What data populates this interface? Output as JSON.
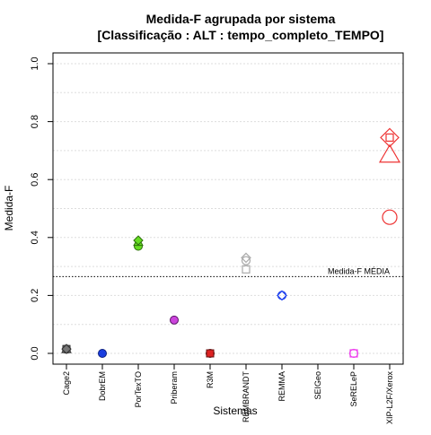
{
  "chart_data": {
    "type": "scatter",
    "title": "Medida-F agrupada por sistema",
    "subtitle": "[Classificação : ALT : tempo_completo_TEMPO]",
    "xlabel": "Sistemas",
    "ylabel": "Medida-F",
    "ylim": [
      0,
      1
    ],
    "yticks": [
      "0.0",
      "0.2",
      "0.4",
      "0.6",
      "0.8",
      "1.0"
    ],
    "grid": true,
    "categories": [
      "Cage2",
      "DobrEM",
      "PorTexTO",
      "Priberam",
      "R3M",
      "REMBRANDT",
      "REMMA",
      "SEIGeo",
      "SeRELeP",
      "XIP-L2F/Xerox"
    ],
    "reference_line": {
      "label": "Medida-F MÉDIA",
      "value": 0.265
    },
    "points": [
      {
        "category": "Cage2",
        "marker": "circle",
        "value": 0.015,
        "fill": "#777777",
        "stroke": "#333333"
      },
      {
        "category": "Cage2",
        "marker": "square",
        "value": 0.015,
        "fill": "#777777",
        "stroke": "#333333"
      },
      {
        "category": "Cage2",
        "marker": "triangle",
        "value": 0.015,
        "fill": "#777777",
        "stroke": "#333333"
      },
      {
        "category": "Cage2",
        "marker": "diamond",
        "value": 0.015,
        "fill": "#777777",
        "stroke": "#333333"
      },
      {
        "category": "DobrEM",
        "marker": "circle",
        "value": 0.0,
        "fill": "#1a3ee0",
        "stroke": "#0b1f80"
      },
      {
        "category": "PorTexTO",
        "marker": "circle",
        "value": 0.37,
        "fill": "#66dd22",
        "stroke": "#2d6e0c"
      },
      {
        "category": "PorTexTO",
        "marker": "triangle",
        "value": 0.385,
        "fill": "#66dd22",
        "stroke": "#2d6e0c"
      },
      {
        "category": "PorTexTO",
        "marker": "diamond",
        "value": 0.39,
        "fill": "#66dd22",
        "stroke": "#2d6e0c"
      },
      {
        "category": "Priberam",
        "marker": "circle",
        "value": 0.115,
        "fill": "#cc44dd",
        "stroke": "#5a1466"
      },
      {
        "category": "R3M",
        "marker": "circle",
        "value": 0.0,
        "fill": "#dd2222",
        "stroke": "#661111"
      },
      {
        "category": "R3M",
        "marker": "square",
        "value": 0.0,
        "fill": "#dd2222",
        "stroke": "#661111"
      },
      {
        "category": "REMBRANDT",
        "marker": "open-square",
        "value": 0.29,
        "fill": "none",
        "stroke": "#aaaaaa"
      },
      {
        "category": "REMBRANDT",
        "marker": "open-circle",
        "value": 0.32,
        "fill": "none",
        "stroke": "#aaaaaa"
      },
      {
        "category": "REMBRANDT",
        "marker": "open-diamond",
        "value": 0.33,
        "fill": "none",
        "stroke": "#aaaaaa"
      },
      {
        "category": "REMMA",
        "marker": "open-diamond",
        "value": 0.2,
        "fill": "none",
        "stroke": "#2244ee"
      },
      {
        "category": "REMMA",
        "marker": "open-circle",
        "value": 0.2,
        "fill": "none",
        "stroke": "#2244ee"
      },
      {
        "category": "SeRELeP",
        "marker": "open-square",
        "value": 0.0,
        "fill": "none",
        "stroke": "#ee44ee"
      },
      {
        "category": "SeRELeP",
        "marker": "open-circle",
        "value": 0.0,
        "fill": "none",
        "stroke": "#ee44ee"
      },
      {
        "category": "XIP-L2F/Xerox",
        "marker": "open-circle-large",
        "value": 0.47,
        "fill": "none",
        "stroke": "#ee3333"
      },
      {
        "category": "XIP-L2F/Xerox",
        "marker": "open-triangle-large",
        "value": 0.685,
        "fill": "none",
        "stroke": "#ee3333"
      },
      {
        "category": "XIP-L2F/Xerox",
        "marker": "open-square",
        "value": 0.745,
        "fill": "none",
        "stroke": "#ee3333"
      },
      {
        "category": "XIP-L2F/Xerox",
        "marker": "open-diamond-large",
        "value": 0.745,
        "fill": "none",
        "stroke": "#ee3333"
      }
    ]
  }
}
